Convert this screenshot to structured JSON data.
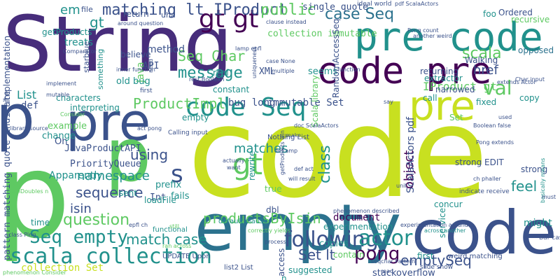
{
  "words": [
    {
      "text": "String",
      "color": "#472d7b"
    },
    {
      "text": "code",
      "color": "#c8e020"
    },
    {
      "text": "p",
      "color": "#5ec962"
    },
    {
      "text": "empty",
      "color": "#2c728e"
    },
    {
      "text": "code",
      "color": "#3b528b"
    },
    {
      "text": "pre code",
      "color": "#21918c"
    },
    {
      "text": "code pre",
      "color": "#440154"
    },
    {
      "text": "pre",
      "color": "#3b528b"
    },
    {
      "text": "p",
      "color": "#3b528b"
    },
    {
      "text": "pre",
      "color": "#c8e020"
    },
    {
      "text": "gt gt",
      "color": "#440154"
    },
    {
      "text": "code Seq",
      "color": "#21918c"
    },
    {
      "text": "p",
      "color": "#5ec962"
    },
    {
      "text": "scala collection",
      "color": "#21918c"
    },
    {
      "text": "gt",
      "color": "#5ec962"
    },
    {
      "text": "s",
      "color": "#3b528b"
    },
    {
      "text": "Seq empty",
      "color": "#21918c"
    },
    {
      "text": "scala",
      "color": "#5ec962"
    },
    {
      "text": "val",
      "color": "#5ec962"
    },
    {
      "text": "following",
      "color": "#3b528b"
    },
    {
      "text": "actor",
      "color": "#21918c"
    },
    {
      "text": "matching lt IProduct",
      "color": "#3b528b"
    },
    {
      "text": "question",
      "color": "#5ec962"
    },
    {
      "text": "message",
      "color": "#21918c"
    },
    {
      "text": "public",
      "color": "#5ec962"
    },
    {
      "text": "case Seq",
      "color": "#2c728e"
    },
    {
      "text": "pong",
      "color": "#440154"
    },
    {
      "text": "Seq Char",
      "color": "#5ec962"
    },
    {
      "text": "productsByIsin",
      "color": "#5ec962"
    },
    {
      "text": "ProductImpl",
      "color": "#5ec962"
    },
    {
      "text": "sequence",
      "color": "#3b528b"
    },
    {
      "text": "match case",
      "color": "#21918c"
    },
    {
      "text": "Set lt",
      "color": "#3b528b"
    },
    {
      "text": "emptySeq",
      "color": "#3b528b"
    },
    {
      "text": "namespace",
      "color": "#21918c"
    },
    {
      "text": "using",
      "color": "#3b528b"
    },
    {
      "text": "matches",
      "color": "#21918c"
    },
    {
      "text": "class",
      "color": "#21918c"
    },
    {
      "text": "object",
      "color": "#440154"
    },
    {
      "text": "href",
      "color": "#3b528b"
    },
    {
      "text": "feel",
      "color": "#21918c"
    },
    {
      "text": "em",
      "color": "#21918c"
    },
    {
      "text": "gt",
      "color": "#21918c"
    },
    {
      "text": "isin",
      "color": "#3b528b"
    },
    {
      "text": "document",
      "color": "#440154"
    },
    {
      "text": "IProduct gt",
      "color": "#5ec962"
    },
    {
      "text": "List",
      "color": "#21918c"
    },
    {
      "text": "Java",
      "color": "#5ec962"
    },
    {
      "text": "collection Set",
      "color": "#c8e020"
    },
    {
      "text": "immutable Set",
      "color": "#3b528b"
    },
    {
      "text": "bug long",
      "color": "#3b528b"
    },
    {
      "text": "single quote",
      "color": "#3b528b"
    },
    {
      "text": "collection immutable",
      "color": "#5ec962"
    },
    {
      "text": "XML",
      "color": "#3b528b"
    },
    {
      "text": "def",
      "color": "#3b528b"
    },
    {
      "text": "old bug",
      "color": "#21918c"
    },
    {
      "text": "API",
      "color": "#3b528b"
    },
    {
      "text": "seems",
      "color": "#21918c"
    },
    {
      "text": "Walking",
      "color": "#3b528b"
    },
    {
      "text": "returning",
      "color": "#3b528b"
    },
    {
      "text": "opposed",
      "color": "#2c728e"
    },
    {
      "text": "Apparently",
      "color": "#21918c"
    },
    {
      "text": "might",
      "color": "#21918c"
    },
    {
      "text": "Oh",
      "color": "#3b528b"
    },
    {
      "text": "ScalaActors pdf",
      "color": "#3b528b"
    },
    {
      "text": "experimentation",
      "color": "#21918c"
    },
    {
      "text": "stackoverflow",
      "color": "#3b528b"
    },
    {
      "text": "copies",
      "color": "#21918c"
    },
    {
      "text": "contain",
      "color": "#5ec962"
    },
    {
      "text": "suggested",
      "color": "#21918c"
    },
    {
      "text": "access",
      "color": "#3b528b"
    },
    {
      "text": "n",
      "color": "#21918c"
    },
    {
      "text": "first",
      "color": "#21918c"
    },
    {
      "text": "dbl",
      "color": "#3b528b"
    },
    {
      "text": "true",
      "color": "#5ec962"
    },
    {
      "text": "Int",
      "color": "#3b528b"
    },
    {
      "text": "prefix",
      "color": "#21918c"
    },
    {
      "text": "PriorityQueue",
      "color": "#3b528b"
    },
    {
      "text": "JavaProductAPI",
      "color": "#3b528b"
    },
    {
      "text": "sent",
      "color": "#21918c"
    },
    {
      "text": "fails",
      "color": "#21918c"
    },
    {
      "text": "change",
      "color": "#21918c"
    },
    {
      "text": "example",
      "color": "#5ec962"
    },
    {
      "text": "constant",
      "color": "#21918c"
    },
    {
      "text": "characters",
      "color": "#21918c"
    },
    {
      "text": "interpreting",
      "color": "#21918c"
    },
    {
      "text": "method",
      "color": "#3b528b"
    },
    {
      "text": "believe",
      "color": "#3b528b"
    },
    {
      "text": "treats",
      "color": "#21918c"
    },
    {
      "text": "getProducts",
      "color": "#21918c"
    },
    {
      "text": "return",
      "color": "#3b528b"
    },
    {
      "text": "file",
      "color": "#3b528b"
    },
    {
      "text": "uha",
      "color": "#3b528b"
    },
    {
      "text": "ideal world",
      "color": "#3b528b"
    },
    {
      "text": "Ordered",
      "color": "#3b528b"
    },
    {
      "text": "recursive",
      "color": "#5ec962"
    },
    {
      "text": "foo",
      "color": "#21918c"
    },
    {
      "text": "fixed",
      "color": "#21918c"
    },
    {
      "text": "narrowed",
      "color": "#3b528b"
    },
    {
      "text": "extractor",
      "color": "#21918c"
    },
    {
      "text": "Set",
      "color": "#5ec962"
    },
    {
      "text": "call",
      "color": "#21918c"
    },
    {
      "text": "copy",
      "color": "#21918c"
    },
    {
      "text": "service",
      "color": "#21918c"
    },
    {
      "text": "concur",
      "color": "#21918c"
    },
    {
      "text": "empty",
      "color": "#21918c"
    },
    {
      "text": "real",
      "color": "#21918c"
    },
    {
      "text": "Nothing List",
      "color": "#3b528b"
    },
    {
      "text": "strong",
      "color": "#3b528b"
    },
    {
      "text": "strong EDIT",
      "color": "#3b528b"
    },
    {
      "text": "rewrite",
      "color": "#21918c"
    },
    {
      "text": "time",
      "color": "#21918c"
    },
    {
      "text": "Scala library",
      "color": "#5ec962"
    },
    {
      "text": "RandomAccessSeq",
      "color": "#3b528b"
    },
    {
      "text": "implementation",
      "color": "#3b528b"
    },
    {
      "text": "pattern matching quote indicate",
      "color": "#3b528b"
    },
    {
      "text": "something",
      "color": "#21918c"
    },
    {
      "text": "starblue",
      "color": "#3b528b"
    },
    {
      "text": "loadFile",
      "color": "#21918c"
    },
    {
      "text": "UPDATE Upon",
      "color": "#3b528b"
    },
    {
      "text": "functional",
      "color": "#21918c"
    },
    {
      "text": "ran across",
      "color": "#5ec962"
    },
    {
      "text": "slide show",
      "color": "#3b528b"
    },
    {
      "text": "weird matching",
      "color": "#3b528b"
    },
    {
      "text": "list2 List",
      "color": "#3b528b"
    },
    {
      "text": "Bar case",
      "color": "#3b528b"
    },
    {
      "text": "basically means",
      "color": "#21918c"
    },
    {
      "text": "default clause",
      "color": "#21918c"
    },
    {
      "text": "across another",
      "color": "#21918c"
    },
    {
      "text": "ch phaller",
      "color": "#3b528b"
    },
    {
      "text": "indicate receive",
      "color": "#3b528b"
    },
    {
      "text": "Pong extends",
      "color": "#3b528b"
    },
    {
      "text": "Boolean false",
      "color": "#3b528b"
    },
    {
      "text": "Calling input",
      "color": "#3b528b"
    },
    {
      "text": "act pong",
      "color": "#3b528b"
    },
    {
      "text": "Pong count",
      "color": "#3b528b"
    },
    {
      "text": "Char input",
      "color": "#3b528b"
    },
    {
      "text": "extends Actor",
      "color": "#3b528b"
    },
    {
      "text": "clause instead",
      "color": "#3b528b"
    },
    {
      "text": "case None",
      "color": "#3b528b"
    },
    {
      "text": "lamp epfl",
      "color": "#3b528b"
    },
    {
      "text": "inner function",
      "color": "#3b528b"
    },
    {
      "text": "around question",
      "color": "#3b528b"
    },
    {
      "text": "Comparator",
      "color": "#3b528b"
    },
    {
      "text": "implement",
      "color": "#3b528b"
    },
    {
      "text": "correctly yields",
      "color": "#5ec962"
    },
    {
      "text": "process",
      "color": "#3b528b"
    },
    {
      "text": "experimentation around",
      "color": "#3b528b"
    },
    {
      "text": "phenomenon described",
      "color": "#3b528b"
    },
    {
      "text": "class Ping",
      "color": "#3b528b"
    },
    {
      "text": "epfl ch",
      "color": "#3b528b"
    },
    {
      "text": "sumDoubles n",
      "color": "#5ec962"
    },
    {
      "text": "library source",
      "color": "#3b528b"
    },
    {
      "text": "Consider",
      "color": "#5ec962"
    },
    {
      "text": "uniqueness",
      "color": "#3b528b"
    },
    {
      "text": "doc ScalaActors",
      "color": "#3b528b"
    },
    {
      "text": "getProducts isin",
      "color": "#3b528b"
    },
    {
      "text": "make",
      "color": "#3b528b"
    },
    {
      "text": "still",
      "color": "#5ec962"
    },
    {
      "text": "unit",
      "color": "#3b528b"
    },
    {
      "text": "mutable",
      "color": "#3b528b"
    },
    {
      "text": "multiple",
      "color": "#3b528b"
    },
    {
      "text": "function",
      "color": "#3b528b"
    },
    {
      "text": "another weird",
      "color": "#3b528b"
    },
    {
      "text": "say",
      "color": "#3b528b"
    },
    {
      "text": "used",
      "color": "#3b528b"
    },
    {
      "text": "must",
      "color": "#3b528b"
    },
    {
      "text": "read",
      "color": "#3b528b"
    },
    {
      "text": "want",
      "color": "#3b528b"
    },
    {
      "text": "actually",
      "color": "#3b528b"
    },
    {
      "text": "def act",
      "color": "#3b528b"
    },
    {
      "text": "will result",
      "color": "#3b528b"
    },
    {
      "text": "def amp",
      "color": "#3b528b"
    },
    {
      "text": "seqchar Pattern",
      "color": "#3b528b"
    },
    {
      "text": "rest Boolean",
      "color": "#3b528b"
    },
    {
      "text": "pdf ScalaActors",
      "color": "#3b528b"
    },
    {
      "text": "need",
      "color": "#3b528b"
    },
    {
      "text": "first",
      "color": "#3b528b"
    },
    {
      "text": "phenomenon Consider",
      "color": "#5ec962"
    }
  ]
}
